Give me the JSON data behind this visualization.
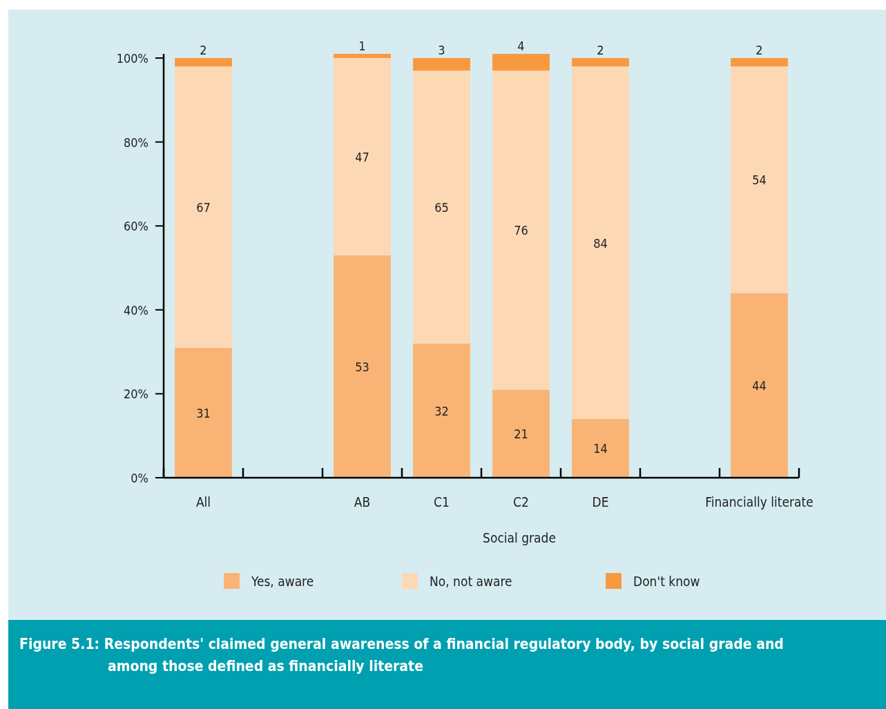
{
  "chart_data": {
    "type": "bar",
    "stacked": true,
    "title": "Figure 5.1: Respondents' claimed general awareness of a financial regulatory body, by social grade and among those defined as financially literate",
    "xlabel": "Social grade",
    "categories": [
      "All",
      null,
      "AB",
      "C1",
      "C2",
      "DE",
      null,
      "Financially literate"
    ],
    "series": [
      {
        "name": "Yes, aware",
        "color": "#f9b475",
        "values": [
          31,
          null,
          53,
          32,
          21,
          14,
          null,
          44
        ]
      },
      {
        "name": "No, not aware",
        "color": "#fdd8b5",
        "values": [
          67,
          null,
          47,
          65,
          76,
          84,
          null,
          54
        ]
      },
      {
        "name": "Don't know",
        "color": "#f7993f",
        "values": [
          2,
          null,
          1,
          3,
          4,
          2,
          null,
          2
        ]
      }
    ],
    "ylim": [
      0,
      101
    ],
    "yticks": [
      {
        "value": 0,
        "label": "0%"
      },
      {
        "value": 20,
        "label": "20%"
      },
      {
        "value": 40,
        "label": "40%"
      },
      {
        "value": 60,
        "label": "60%"
      },
      {
        "value": 80,
        "label": "80%"
      },
      {
        "value": 100,
        "label": "100%"
      }
    ],
    "data_labels": true,
    "legend": "bottom"
  }
}
